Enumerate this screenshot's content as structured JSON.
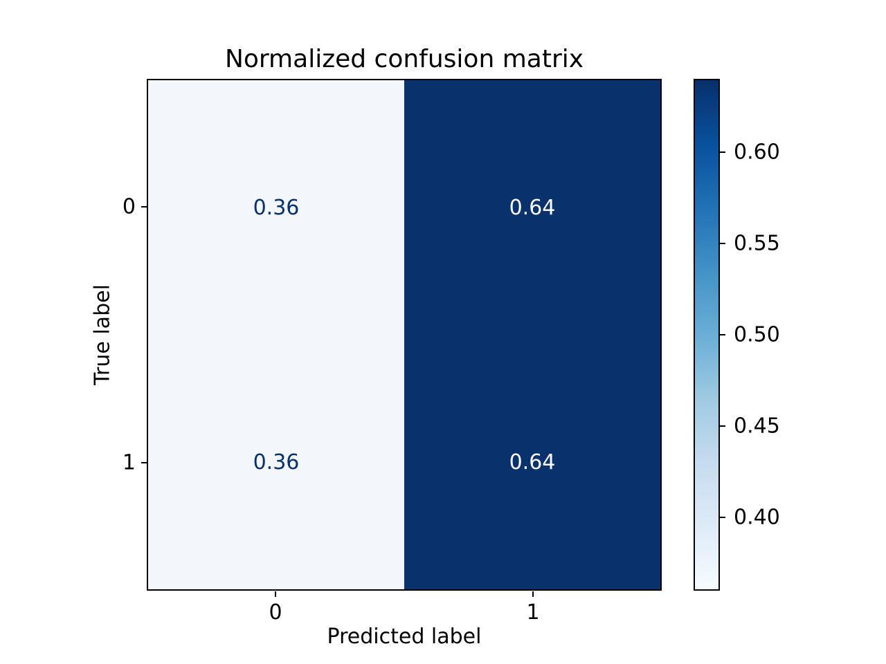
{
  "chart_data": {
    "type": "heatmap",
    "title": "Normalized confusion matrix",
    "xlabel": "Predicted label",
    "ylabel": "True label",
    "x_categories": [
      "0",
      "1"
    ],
    "y_categories": [
      "0",
      "1"
    ],
    "matrix": [
      [
        0.36,
        0.64
      ],
      [
        0.36,
        0.64
      ]
    ],
    "vmin": 0.36,
    "vmax": 0.64,
    "colormap": "Blues",
    "colormap_stops_top_to_bottom": [
      "#08306b",
      "#08519c",
      "#2171b5",
      "#4292c6",
      "#6aaed6",
      "#9ecae1",
      "#c6dbef",
      "#deebf7",
      "#f7fbff"
    ],
    "colors": {
      "cell_low": "#f3f7fc",
      "cell_high": "#09316b",
      "text_on_low": "#08306b",
      "text_on_high": "#ffffff",
      "axis": "#000000"
    },
    "colorbar": {
      "position": "right",
      "tick_labels": [
        "0.60",
        "0.55",
        "0.50",
        "0.45",
        "0.40"
      ],
      "tick_values": [
        0.6,
        0.55,
        0.5,
        0.45,
        0.4
      ]
    },
    "grid": "off",
    "legend": "none"
  }
}
